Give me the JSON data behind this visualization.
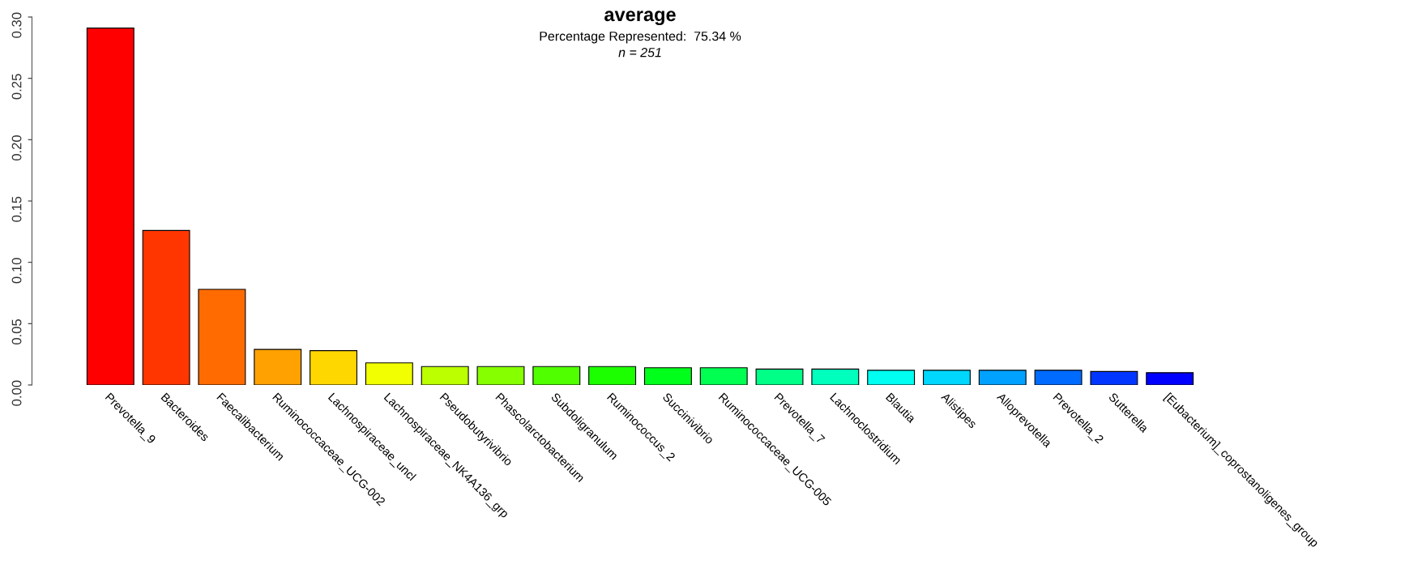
{
  "chart_data": {
    "type": "bar",
    "title": "average",
    "annotations": [
      "Percentage Represented:  75.34 %",
      "n = 251"
    ],
    "categories": [
      "Prevotella_9",
      "Bacteroides",
      "Faecalibacterium",
      "Ruminococcaceae_UCG-002",
      "Lachnospiraceae_uncl",
      "Lachnospiraceae_NK4A136_grp",
      "Pseudobutyrivibrio",
      "Phascolarctobacterium",
      "Subdoligranulum",
      "Ruminococcus_2",
      "Succinivibrio",
      "Ruminococcaceae_UCG-005",
      "Prevotella_7",
      "Lachnoclostridium",
      "Blautia",
      "Alistipes",
      "Alloprevotella",
      "Prevotella_2",
      "Sutterella",
      "[Eubacterium]_coprostanoligenes_group"
    ],
    "values": [
      0.291,
      0.126,
      0.078,
      0.029,
      0.028,
      0.018,
      0.015,
      0.015,
      0.015,
      0.015,
      0.014,
      0.014,
      0.013,
      0.013,
      0.012,
      0.012,
      0.012,
      0.012,
      0.011,
      0.01
    ],
    "colors": [
      "#ff0000",
      "#ff3600",
      "#ff6b00",
      "#ffa100",
      "#ffd700",
      "#f1ff00",
      "#bcff00",
      "#86ff00",
      "#50ff00",
      "#1bff00",
      "#00ff1b",
      "#00ff50",
      "#00ff86",
      "#00ffbc",
      "#00fff1",
      "#00d7ff",
      "#00a1ff",
      "#006bff",
      "#0036ff",
      "#0000ff"
    ],
    "ylim": [
      0,
      0.3
    ],
    "yticks": [
      {
        "value": 0,
        "label": "0.00"
      },
      {
        "value": 0.05,
        "label": "0.05"
      },
      {
        "value": 0.1,
        "label": "0.10"
      },
      {
        "value": 0.15,
        "label": "0.15"
      },
      {
        "value": 0.2,
        "label": "0.20"
      },
      {
        "value": 0.25,
        "label": "0.25"
      },
      {
        "value": 0.3,
        "label": "0.30"
      }
    ],
    "grid": false,
    "legend": false
  }
}
